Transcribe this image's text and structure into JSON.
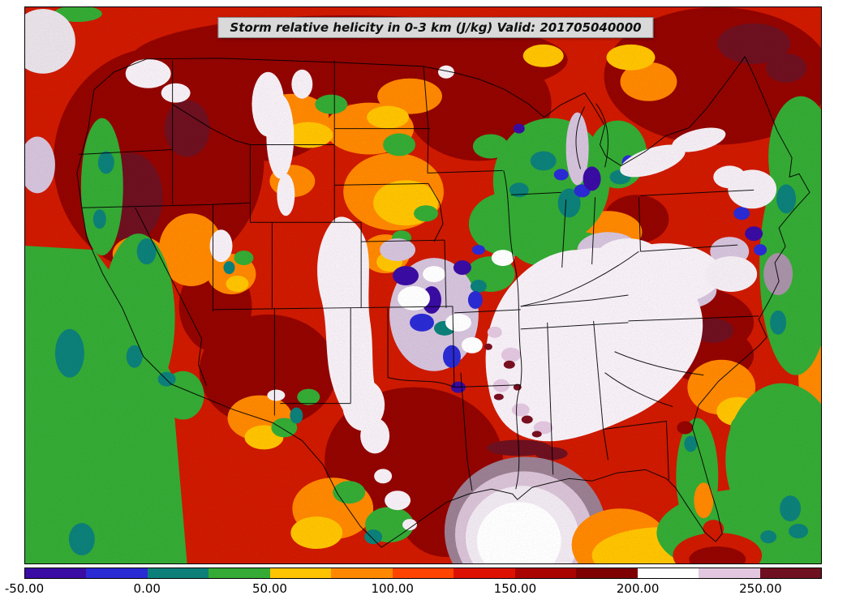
{
  "title": "Storm relative helicity in 0-3 km (J/kg) Valid: 201705040000",
  "map": {
    "area": "Continental United States",
    "field": "Storm relative helicity 0-3 km",
    "unit": "J/kg"
  },
  "colorbar": {
    "min": -50,
    "max": 275,
    "interval": 25,
    "ticks": [
      {
        "value": "-50.00",
        "percent": 0
      },
      {
        "value": "0.00",
        "percent": 15.385
      },
      {
        "value": "50.00",
        "percent": 30.769
      },
      {
        "value": "100.00",
        "percent": 46.154
      },
      {
        "value": "150.00",
        "percent": 61.538
      },
      {
        "value": "200.00",
        "percent": 76.923
      },
      {
        "value": "250.00",
        "percent": 92.308
      }
    ],
    "segments": [
      {
        "from": -50,
        "to": -25,
        "color": "#3a0ca3"
      },
      {
        "from": -25,
        "to": 0,
        "color": "#2b2bd4"
      },
      {
        "from": 0,
        "to": 25,
        "color": "#0d807a"
      },
      {
        "from": 25,
        "to": 50,
        "color": "#35ab35"
      },
      {
        "from": 50,
        "to": 75,
        "color": "#ffc400"
      },
      {
        "from": 75,
        "to": 100,
        "color": "#ff8800"
      },
      {
        "from": 100,
        "to": 125,
        "color": "#ff4400"
      },
      {
        "from": 125,
        "to": 150,
        "color": "#dd1100"
      },
      {
        "from": 150,
        "to": 175,
        "color": "#aa0400"
      },
      {
        "from": 175,
        "to": 200,
        "color": "#7e0000"
      },
      {
        "from": 200,
        "to": 225,
        "color": "#ffffff"
      },
      {
        "from": 225,
        "to": 250,
        "color": "#e3c7e0"
      },
      {
        "from": 250,
        "to": 275,
        "color": "#6e1020"
      }
    ]
  }
}
